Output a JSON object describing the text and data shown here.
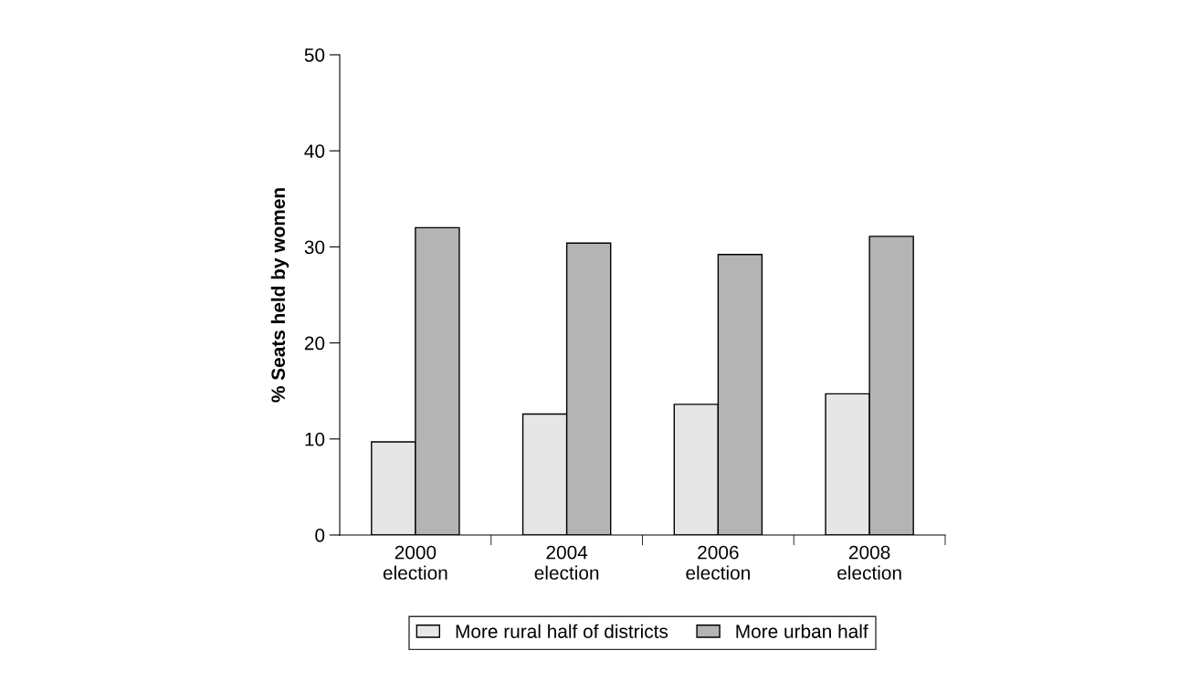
{
  "chart_data": {
    "type": "bar",
    "ylabel": "% Seats held by women",
    "categories": [
      "2000\nelection",
      "2004\nelection",
      "2006\nelection",
      "2008\nelection"
    ],
    "series": [
      {
        "name": "More rural half of districts",
        "color": "#e6e6e6",
        "values": [
          9.7,
          12.6,
          13.6,
          14.7
        ]
      },
      {
        "name": "More urban half",
        "color": "#b4b4b4",
        "values": [
          32.0,
          30.4,
          29.2,
          31.1
        ]
      }
    ],
    "ylim": [
      0,
      50
    ],
    "yticks": [
      0,
      10,
      20,
      30,
      40,
      50
    ],
    "grid": false,
    "legend": "bottom"
  }
}
